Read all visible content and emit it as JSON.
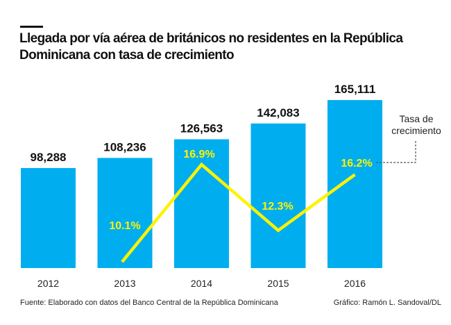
{
  "title": "Llegada  por vía aérea de británicos no residentes en la República Dominicana con tasa de crecimiento",
  "source": "Fuente: Elaborado con datos del Banco Central de la República Dominicana",
  "credit": "Gráfico: Ramón L. Sandoval/DL",
  "chart_data": {
    "type": "bar",
    "categories": [
      "2012",
      "2013",
      "2014",
      "2015",
      "2016"
    ],
    "values": [
      98288,
      108236,
      126563,
      142083,
      165111
    ],
    "value_labels": [
      "98,288",
      "108,236",
      "126,563",
      "142,083",
      "165,111"
    ],
    "bar_color": "#00AEEF",
    "line": {
      "type": "line",
      "name": "Tasa de crecimiento",
      "categories": [
        "2013",
        "2014",
        "2015",
        "2016"
      ],
      "values": [
        10.1,
        16.9,
        12.3,
        16.2
      ],
      "labels": [
        "10.1%",
        "16.9%",
        "12.3%",
        "16.2%"
      ],
      "color": "#FFF200"
    },
    "annotation": [
      "Tasa de",
      "crecimiento"
    ],
    "grid": false
  }
}
